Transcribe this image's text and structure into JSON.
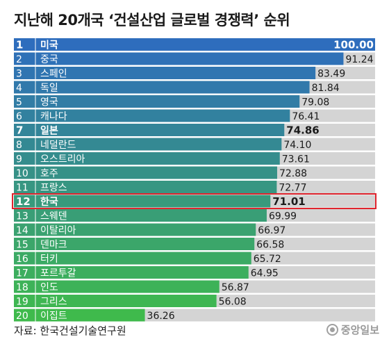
{
  "title": "지난해 20개국 ‘건설산업 글로벌 경쟁력’ 순위",
  "source": "자료: 한국건설기술연구원",
  "brand": "중앙일보",
  "colors": {
    "track": "#d4d4d4",
    "highlight_border": "#e0242e",
    "gradient_top": "#2e6dbd",
    "gradient_bottom": "#3fba4c"
  },
  "chart_data": {
    "type": "bar",
    "orientation": "horizontal",
    "xlim": [
      0,
      100
    ],
    "highlight_rank": 12,
    "bold_ranks": [
      1,
      7,
      12
    ],
    "bars": [
      {
        "rank": "1",
        "country": "미국",
        "value": 100.0,
        "label": "100.00"
      },
      {
        "rank": "2",
        "country": "중국",
        "value": 91.24,
        "label": "91.24"
      },
      {
        "rank": "3",
        "country": "스페인",
        "value": 83.49,
        "label": "83.49"
      },
      {
        "rank": "4",
        "country": "독일",
        "value": 81.84,
        "label": "81.84"
      },
      {
        "rank": "5",
        "country": "영국",
        "value": 79.08,
        "label": "79.08"
      },
      {
        "rank": "6",
        "country": "캐나다",
        "value": 76.41,
        "label": "76.41"
      },
      {
        "rank": "7",
        "country": "일본",
        "value": 74.86,
        "label": "74.86"
      },
      {
        "rank": "8",
        "country": "네덜란드",
        "value": 74.1,
        "label": "74.10"
      },
      {
        "rank": "9",
        "country": "오스트리아",
        "value": 73.61,
        "label": "73.61"
      },
      {
        "rank": "10",
        "country": "호주",
        "value": 72.88,
        "label": "72.88"
      },
      {
        "rank": "11",
        "country": "프랑스",
        "value": 72.77,
        "label": "72.77"
      },
      {
        "rank": "12",
        "country": "한국",
        "value": 71.01,
        "label": "71.01"
      },
      {
        "rank": "13",
        "country": "스웨덴",
        "value": 69.99,
        "label": "69.99"
      },
      {
        "rank": "14",
        "country": "이탈리아",
        "value": 66.97,
        "label": "66.97"
      },
      {
        "rank": "15",
        "country": "덴마크",
        "value": 66.58,
        "label": "66.58"
      },
      {
        "rank": "16",
        "country": "터키",
        "value": 65.72,
        "label": "65.72"
      },
      {
        "rank": "17",
        "country": "포르투갈",
        "value": 64.95,
        "label": "64.95"
      },
      {
        "rank": "18",
        "country": "인도",
        "value": 56.87,
        "label": "56.87"
      },
      {
        "rank": "19",
        "country": "그리스",
        "value": 56.08,
        "label": "56.08"
      },
      {
        "rank": "20",
        "country": "이집트",
        "value": 36.26,
        "label": "36.26"
      }
    ]
  }
}
